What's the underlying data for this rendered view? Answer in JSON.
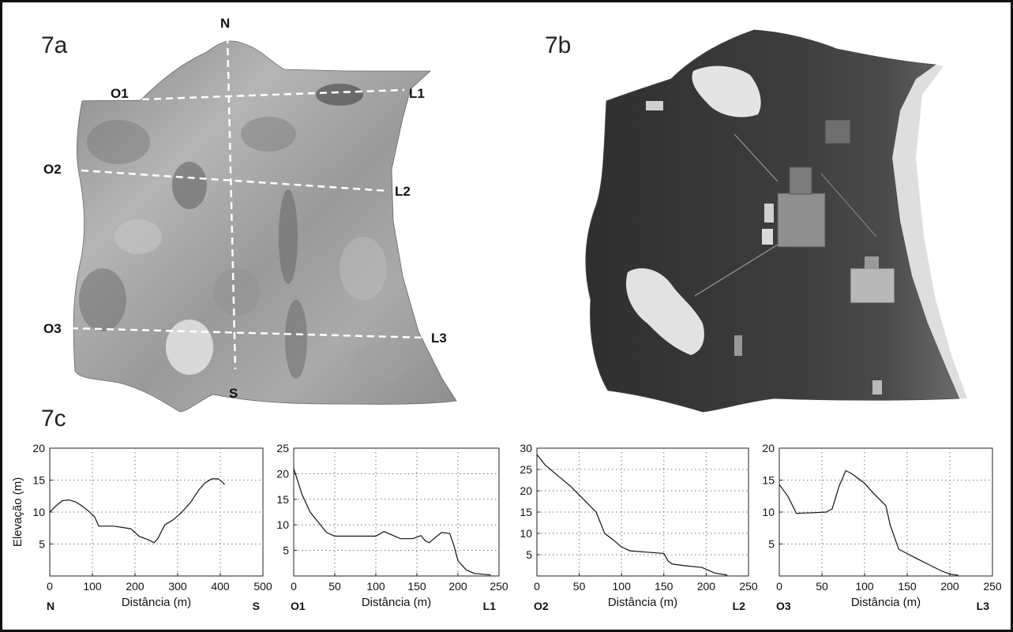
{
  "panels": {
    "a": {
      "label": "7a"
    },
    "b": {
      "label": "7b"
    },
    "c": {
      "label": "7c"
    }
  },
  "map_points": [
    "N",
    "S",
    "O1",
    "L1",
    "O2",
    "L2",
    "O3",
    "L3"
  ],
  "chart_data": [
    {
      "type": "line",
      "title": "",
      "xlabel": "Distância (m)",
      "ylabel": "Elevação (m)",
      "start_label": "N",
      "end_label": "S",
      "xlim": [
        0,
        500
      ],
      "ylim": [
        0,
        20
      ],
      "xticks": [
        0,
        100,
        200,
        300,
        400,
        500
      ],
      "yticks": [
        5,
        10,
        15,
        20
      ],
      "grid": true,
      "series": [
        {
          "x": [
            0,
            15,
            30,
            45,
            60,
            75,
            90,
            105,
            115,
            150,
            190,
            210,
            230,
            245,
            255,
            262,
            270,
            290,
            310,
            330,
            350,
            365,
            380,
            395,
            405,
            410
          ],
          "y": [
            10,
            11,
            11.8,
            11.9,
            11.6,
            11,
            10.2,
            9.3,
            7.8,
            7.8,
            7.4,
            6.2,
            5.7,
            5.2,
            6,
            7,
            8,
            8.8,
            10,
            11.5,
            13.5,
            14.6,
            15.2,
            15.2,
            14.7,
            14.3
          ]
        }
      ]
    },
    {
      "type": "line",
      "title": "",
      "xlabel": "Distância (m)",
      "ylabel": "",
      "start_label": "O1",
      "end_label": "L1",
      "xlim": [
        0,
        250
      ],
      "ylim": [
        0,
        25
      ],
      "xticks": [
        0,
        50,
        100,
        150,
        200,
        250
      ],
      "yticks": [
        5,
        10,
        15,
        20,
        25
      ],
      "grid": true,
      "series": [
        {
          "x": [
            0,
            5,
            10,
            20,
            30,
            40,
            50,
            100,
            110,
            120,
            130,
            145,
            155,
            160,
            165,
            170,
            180,
            190,
            195,
            200,
            210,
            220,
            240
          ],
          "y": [
            21,
            18.5,
            16,
            12.5,
            10.5,
            8.5,
            7.8,
            7.8,
            8.7,
            8,
            7.3,
            7.3,
            7.9,
            6.9,
            6.5,
            7.2,
            8.5,
            8.3,
            6,
            3,
            1.2,
            0.5,
            0.2
          ]
        }
      ]
    },
    {
      "type": "line",
      "title": "",
      "xlabel": "Distância (m)",
      "ylabel": "",
      "start_label": "O2",
      "end_label": "L2",
      "xlim": [
        0,
        250
      ],
      "ylim": [
        0,
        30
      ],
      "xticks": [
        0,
        50,
        100,
        150,
        200,
        250
      ],
      "yticks": [
        5,
        10,
        15,
        20,
        25,
        30
      ],
      "grid": true,
      "series": [
        {
          "x": [
            0,
            10,
            25,
            40,
            55,
            70,
            80,
            90,
            100,
            110,
            130,
            150,
            155,
            160,
            175,
            195,
            210,
            225
          ],
          "y": [
            28.5,
            26,
            23.5,
            21,
            18,
            15,
            10,
            8.5,
            6.8,
            5.9,
            5.6,
            5.3,
            3.5,
            2.8,
            2.4,
            2,
            0.7,
            0.2
          ]
        }
      ]
    },
    {
      "type": "line",
      "title": "",
      "xlabel": "Distância (m)",
      "ylabel": "",
      "start_label": "O3",
      "end_label": "L3",
      "xlim": [
        0,
        250
      ],
      "ylim": [
        0,
        20
      ],
      "xticks": [
        0,
        50,
        100,
        150,
        200,
        250
      ],
      "yticks": [
        5,
        10,
        15,
        20
      ],
      "grid": true,
      "series": [
        {
          "x": [
            0,
            10,
            20,
            40,
            55,
            62,
            70,
            78,
            85,
            100,
            110,
            125,
            130,
            140,
            150,
            160,
            175,
            190,
            200,
            210
          ],
          "y": [
            14.3,
            12.5,
            9.8,
            9.9,
            10,
            10.5,
            14,
            16.5,
            16,
            14.5,
            13,
            11,
            8,
            4.2,
            3.5,
            2.8,
            1.8,
            0.8,
            0.3,
            0.1
          ]
        }
      ]
    }
  ]
}
